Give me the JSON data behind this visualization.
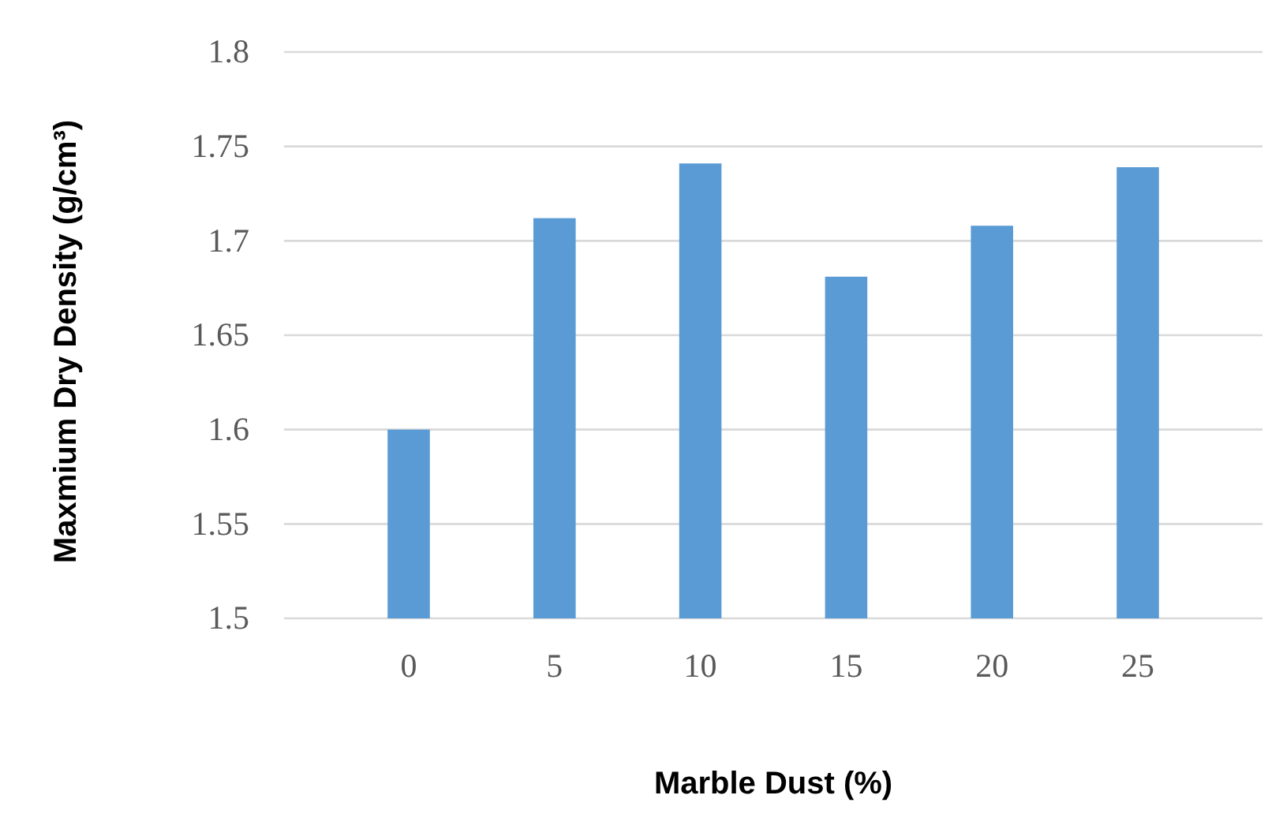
{
  "chart_data": {
    "type": "bar",
    "xlabel": "Marble Dust (%)",
    "ylabel": "Maxmium Dry Density (g/cm³)",
    "categories": [
      "0",
      "5",
      "10",
      "15",
      "20",
      "25"
    ],
    "values": [
      1.6,
      1.712,
      1.741,
      1.681,
      1.708,
      1.739
    ],
    "color": "#5b9bd5",
    "ylim": [
      1.5,
      1.8
    ],
    "yticks": [
      1.5,
      1.55,
      1.6,
      1.65,
      1.7,
      1.75,
      1.8
    ],
    "grid": "y"
  }
}
